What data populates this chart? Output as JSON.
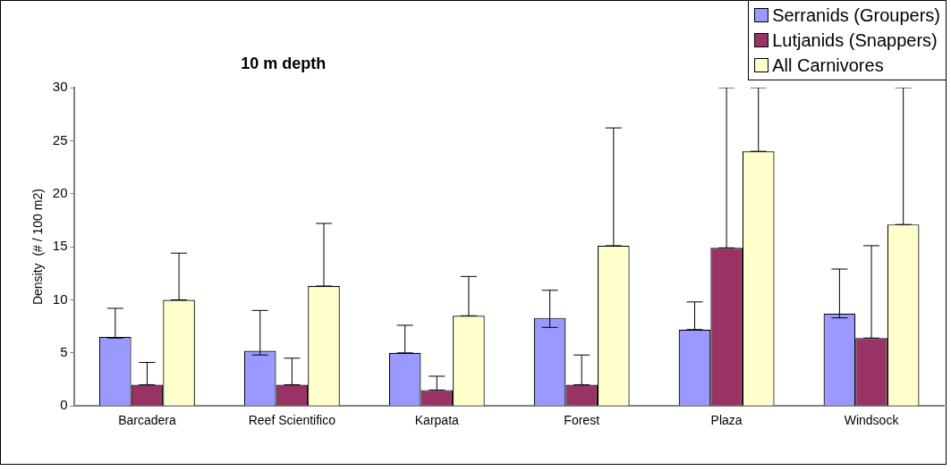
{
  "chart_data": {
    "type": "bar",
    "title": "10 m depth",
    "ylabel": "Density  (# / 100 m2)",
    "categories": [
      "Barcadera",
      "Reef Scientifico",
      "Karpata",
      "Forest",
      "Plaza",
      "Windsock"
    ],
    "series": [
      {
        "name": "Serranids (Groupers)",
        "color": "#9999ff",
        "values": [
          6.5,
          5.2,
          5.0,
          8.3,
          7.2,
          8.7
        ],
        "errors": [
          [
            6.4,
            9.2
          ],
          [
            4.8,
            9.0
          ],
          [
            5.0,
            7.6
          ],
          [
            7.4,
            10.9
          ],
          [
            7.2,
            9.8
          ],
          [
            8.3,
            12.9
          ]
        ]
      },
      {
        "name": "Lutjanids (Snappers)",
        "color": "#993366",
        "values": [
          2.0,
          2.0,
          1.5,
          2.0,
          14.9,
          6.4
        ],
        "errors": [
          [
            2.0,
            4.1
          ],
          [
            2.0,
            4.5
          ],
          [
            1.5,
            2.8
          ],
          [
            2.0,
            4.8
          ],
          [
            14.9,
            30
          ],
          [
            6.4,
            15.1
          ]
        ]
      },
      {
        "name": "All Carnivores",
        "color": "#ffffcc",
        "values": [
          10.0,
          11.3,
          8.5,
          15.1,
          24.0,
          17.1
        ],
        "errors": [
          [
            10.0,
            14.4
          ],
          [
            11.3,
            17.2
          ],
          [
            8.5,
            12.2
          ],
          [
            15.1,
            26.2
          ],
          [
            24.0,
            30
          ],
          [
            17.1,
            30
          ]
        ]
      }
    ],
    "ylim": [
      0,
      30
    ],
    "yticks": [
      0,
      5,
      10,
      15,
      20,
      25,
      30
    ],
    "grid": false,
    "legend": "top right"
  }
}
